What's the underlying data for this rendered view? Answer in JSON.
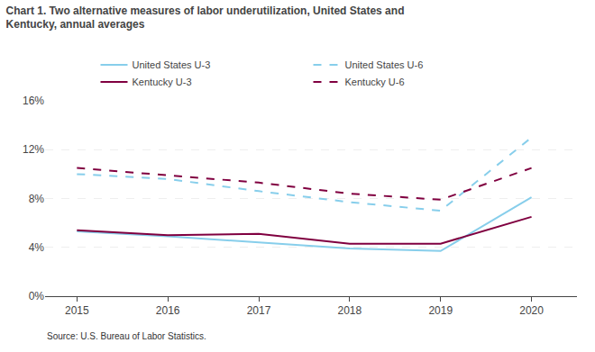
{
  "chart_data": {
    "type": "line",
    "title": "Chart 1. Two alternative measures of labor underutilization, United States and\nKentucky, annual averages",
    "annotations": [
      "Source: U.S. Bureau of Labor Statistics."
    ],
    "x": [
      2015,
      2016,
      2017,
      2018,
      2019,
      2020
    ],
    "series": [
      {
        "name": "United States U-3",
        "color": "#87CEEB",
        "line_style": "solid",
        "values": [
          5.3,
          4.9,
          4.4,
          3.9,
          3.7,
          8.1
        ]
      },
      {
        "name": "United States U-6",
        "color": "#87CEEB",
        "line_style": "dashed",
        "values": [
          10.0,
          9.6,
          8.6,
          7.7,
          7.0,
          13.0
        ]
      },
      {
        "name": "Kentucky U-3",
        "color": "#800040",
        "line_style": "solid",
        "values": [
          5.4,
          5.0,
          5.1,
          4.3,
          4.3,
          6.5
        ]
      },
      {
        "name": "Kentucky U-6",
        "color": "#800040",
        "line_style": "dashed",
        "values": [
          10.5,
          9.9,
          9.3,
          8.4,
          7.9,
          10.5
        ]
      }
    ],
    "xlim": [
      2014.65,
      2020.5
    ],
    "xticks": [
      2015,
      2016,
      2017,
      2018,
      2019,
      2020
    ],
    "ylim": [
      0,
      16
    ],
    "yticks": [
      {
        "value": 0,
        "label": "0%"
      },
      {
        "value": 4,
        "label": "4%"
      },
      {
        "value": 8,
        "label": "8%"
      },
      {
        "value": 12,
        "label": "12%"
      },
      {
        "value": 16,
        "label": "16%"
      }
    ],
    "grid": "y",
    "legend": "top"
  }
}
